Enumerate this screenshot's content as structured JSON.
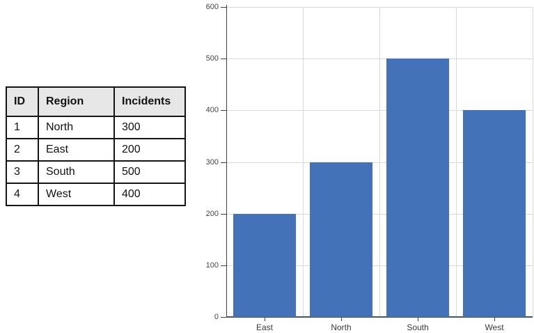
{
  "table": {
    "headers": [
      "ID",
      "Region",
      "Incidents"
    ],
    "rows": [
      [
        "1",
        "North",
        "300"
      ],
      [
        "2",
        "East",
        "200"
      ],
      [
        "3",
        "South",
        "500"
      ],
      [
        "4",
        "West",
        "400"
      ]
    ]
  },
  "chart_data": {
    "type": "bar",
    "categories": [
      "East",
      "North",
      "South",
      "West"
    ],
    "values": [
      200,
      300,
      500,
      400
    ],
    "title": "",
    "xlabel": "",
    "ylabel": "",
    "ylim": [
      0,
      600
    ],
    "ytick_step": 100,
    "grid": true,
    "legend": "none",
    "bar_color": "#4472B8",
    "gridline_color": "#d9d9d9",
    "y_axis_color": "#404040",
    "x_axis_color": "#44546A",
    "tick_label_color": "#444444"
  }
}
